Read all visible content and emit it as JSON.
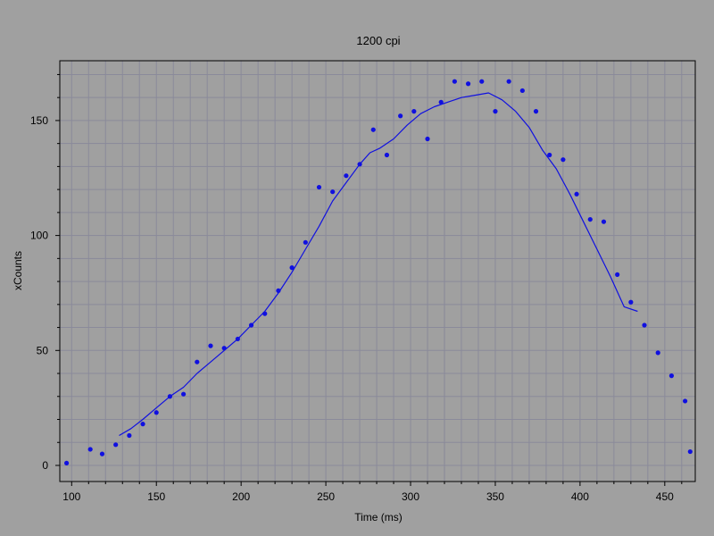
{
  "chart_data": {
    "type": "scatter",
    "title": "1200 cpi",
    "xlabel": "Time (ms)",
    "ylabel": "xCounts",
    "xlim": [
      93,
      468
    ],
    "ylim": [
      -7,
      176
    ],
    "x_ticks": [
      100,
      150,
      200,
      250,
      300,
      350,
      400,
      450
    ],
    "y_ticks": [
      0,
      50,
      100,
      150
    ],
    "x_minor_step": 10,
    "y_minor_step": 10,
    "grid": true,
    "colors": {
      "background": "#a0a0a0",
      "plot_area": "#a0a0a0",
      "grid": "#8a8a9a",
      "series": "#1010e0",
      "axis": "#000000"
    },
    "series": [
      {
        "kind": "points",
        "x": [
          97,
          111,
          118,
          126,
          134,
          142,
          150,
          158,
          166,
          174,
          182,
          190,
          198,
          206,
          214,
          222,
          230,
          238,
          246,
          254,
          262,
          270,
          278,
          286,
          294,
          302,
          310,
          318,
          326,
          334,
          342,
          350,
          358,
          366,
          374,
          382,
          390,
          398,
          406,
          414,
          422,
          430,
          438,
          446,
          454,
          462,
          465
        ],
        "y": [
          1,
          7,
          5,
          9,
          13,
          18,
          23,
          30,
          31,
          45,
          52,
          51,
          55,
          61,
          66,
          76,
          86,
          97,
          121,
          119,
          126,
          131,
          146,
          135,
          152,
          154,
          142,
          158,
          167,
          166,
          167,
          154,
          167,
          163,
          154,
          135,
          133,
          118,
          107,
          106,
          83,
          71,
          61,
          49,
          39,
          28,
          6
        ]
      },
      {
        "kind": "smoothed-line",
        "x": [
          128,
          135,
          142,
          150,
          158,
          166,
          174,
          182,
          190,
          198,
          206,
          214,
          222,
          230,
          238,
          246,
          254,
          262,
          270,
          276,
          282,
          290,
          298,
          306,
          314,
          322,
          330,
          338,
          346,
          354,
          362,
          370,
          378,
          386,
          394,
          402,
          410,
          418,
          426,
          434
        ],
        "y": [
          13,
          16,
          20,
          25,
          30,
          34,
          40,
          45,
          50,
          55,
          61,
          67,
          75,
          84,
          94,
          104,
          115,
          123,
          131,
          136,
          138,
          142,
          148,
          153,
          156,
          158,
          160,
          161,
          162,
          159,
          154,
          147,
          137,
          129,
          118,
          106,
          94,
          82,
          69,
          67
        ]
      }
    ]
  }
}
